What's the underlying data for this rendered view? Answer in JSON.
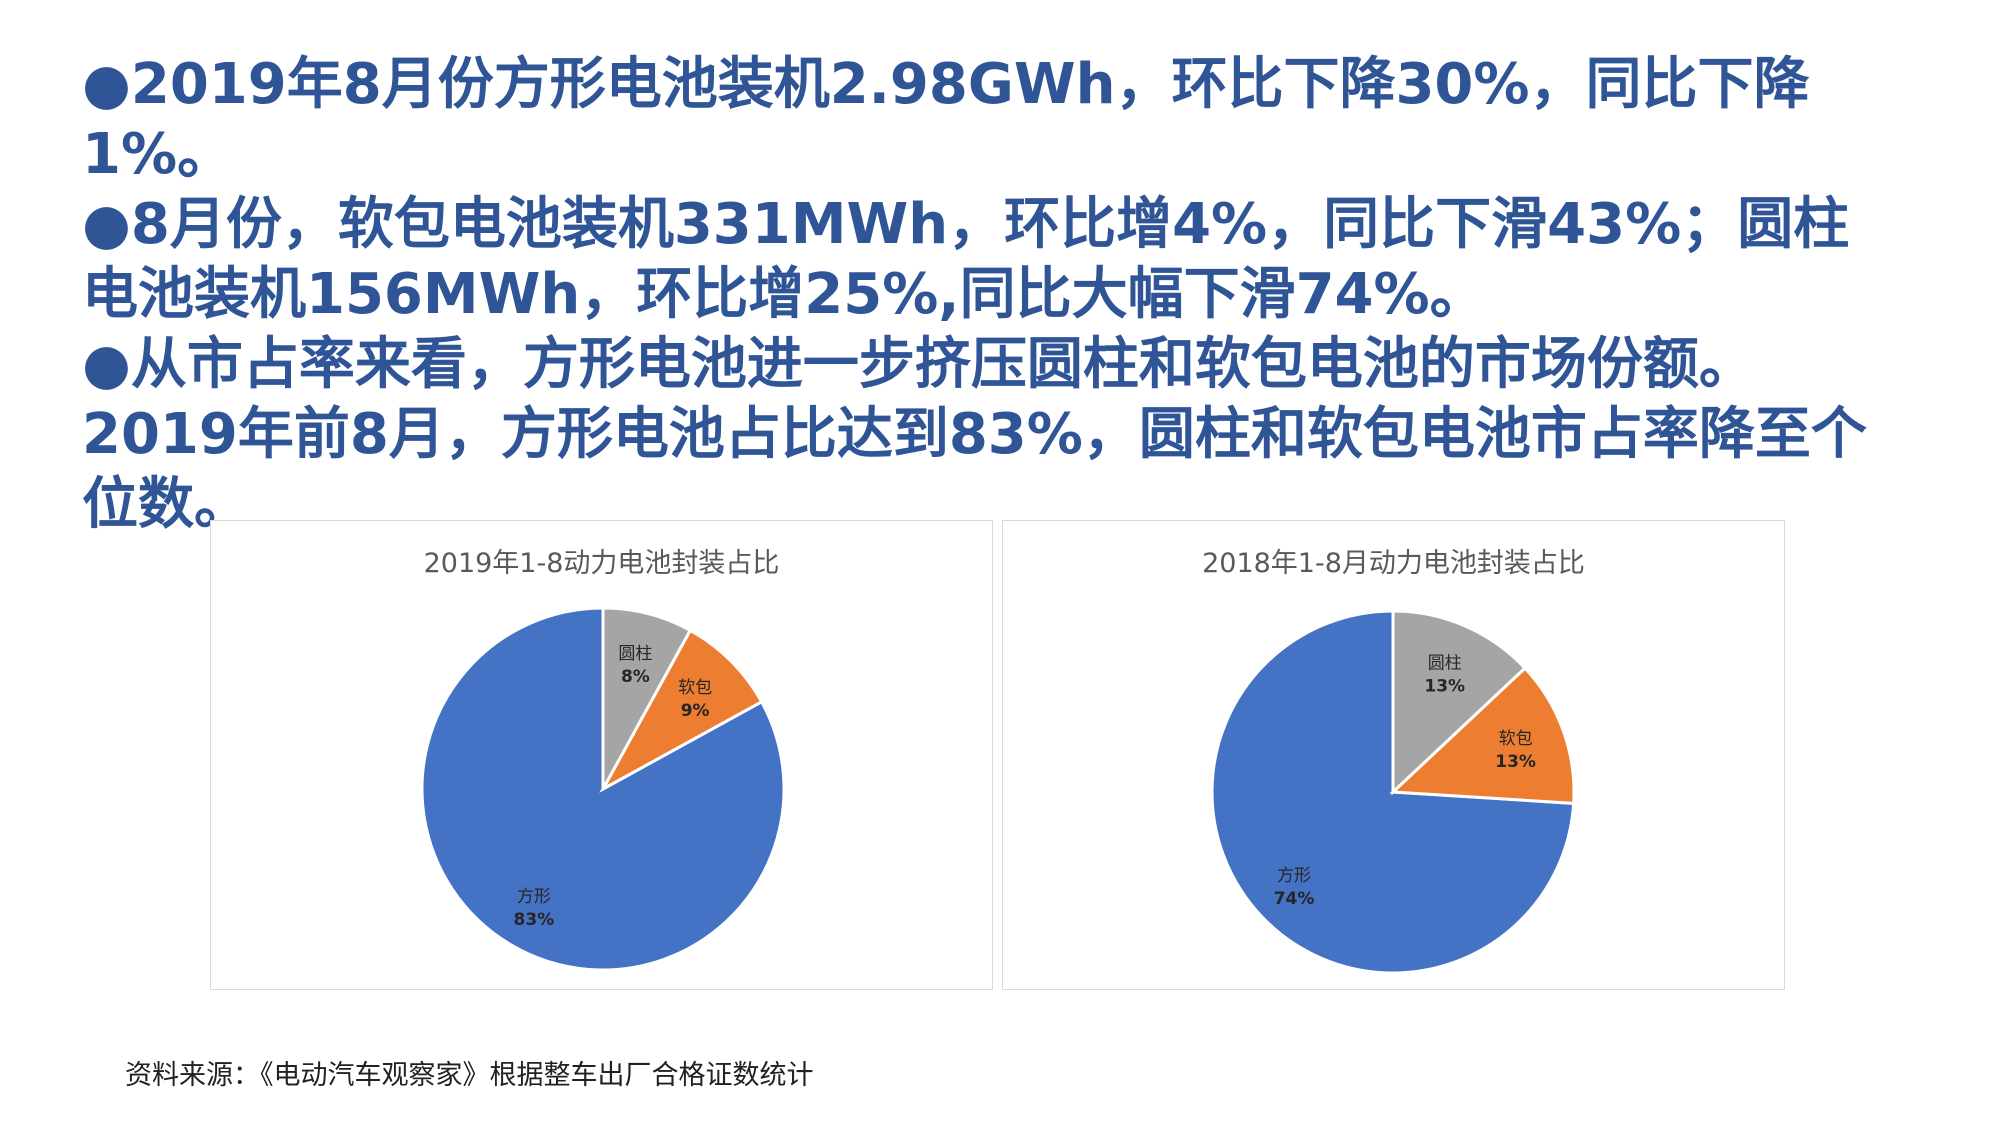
{
  "bullets": [
    "●2019年8月份方形电池装机2.98GWh，环比下降30%，同比下降1%。",
    "●8月份，软包电池装机331MWh，环比增4%，同比下滑43%；圆柱电池装机156MWh，环比增25%,同比大幅下滑74%。",
    "●从市占率来看，方形电池进一步挤压圆柱和软包电池的市场份额。2019年前8月，方形电池占比达到83%，圆柱和软包电池市占率降至个位数。"
  ],
  "source": "资料来源：《电动汽车观察家》根据整车出厂合格证数统计",
  "colors": {
    "fangxing": "#4472c4",
    "ruanbao": "#ed7d31",
    "yuanzhu": "#a5a5a5"
  },
  "chart_data": [
    {
      "type": "pie",
      "title": "2019年1-8动力电池封装占比",
      "categories": [
        "方形",
        "软包",
        "圆柱"
      ],
      "values": [
        83,
        9,
        8
      ],
      "labels": [
        "83%",
        "9%",
        "8%"
      ],
      "legend": "none"
    },
    {
      "type": "pie",
      "title": "2018年1-8月动力电池封装占比",
      "categories": [
        "方形",
        "软包",
        "圆柱"
      ],
      "values": [
        74,
        13,
        13
      ],
      "labels": [
        "74%",
        "13%",
        "13%"
      ],
      "legend": "none"
    }
  ]
}
